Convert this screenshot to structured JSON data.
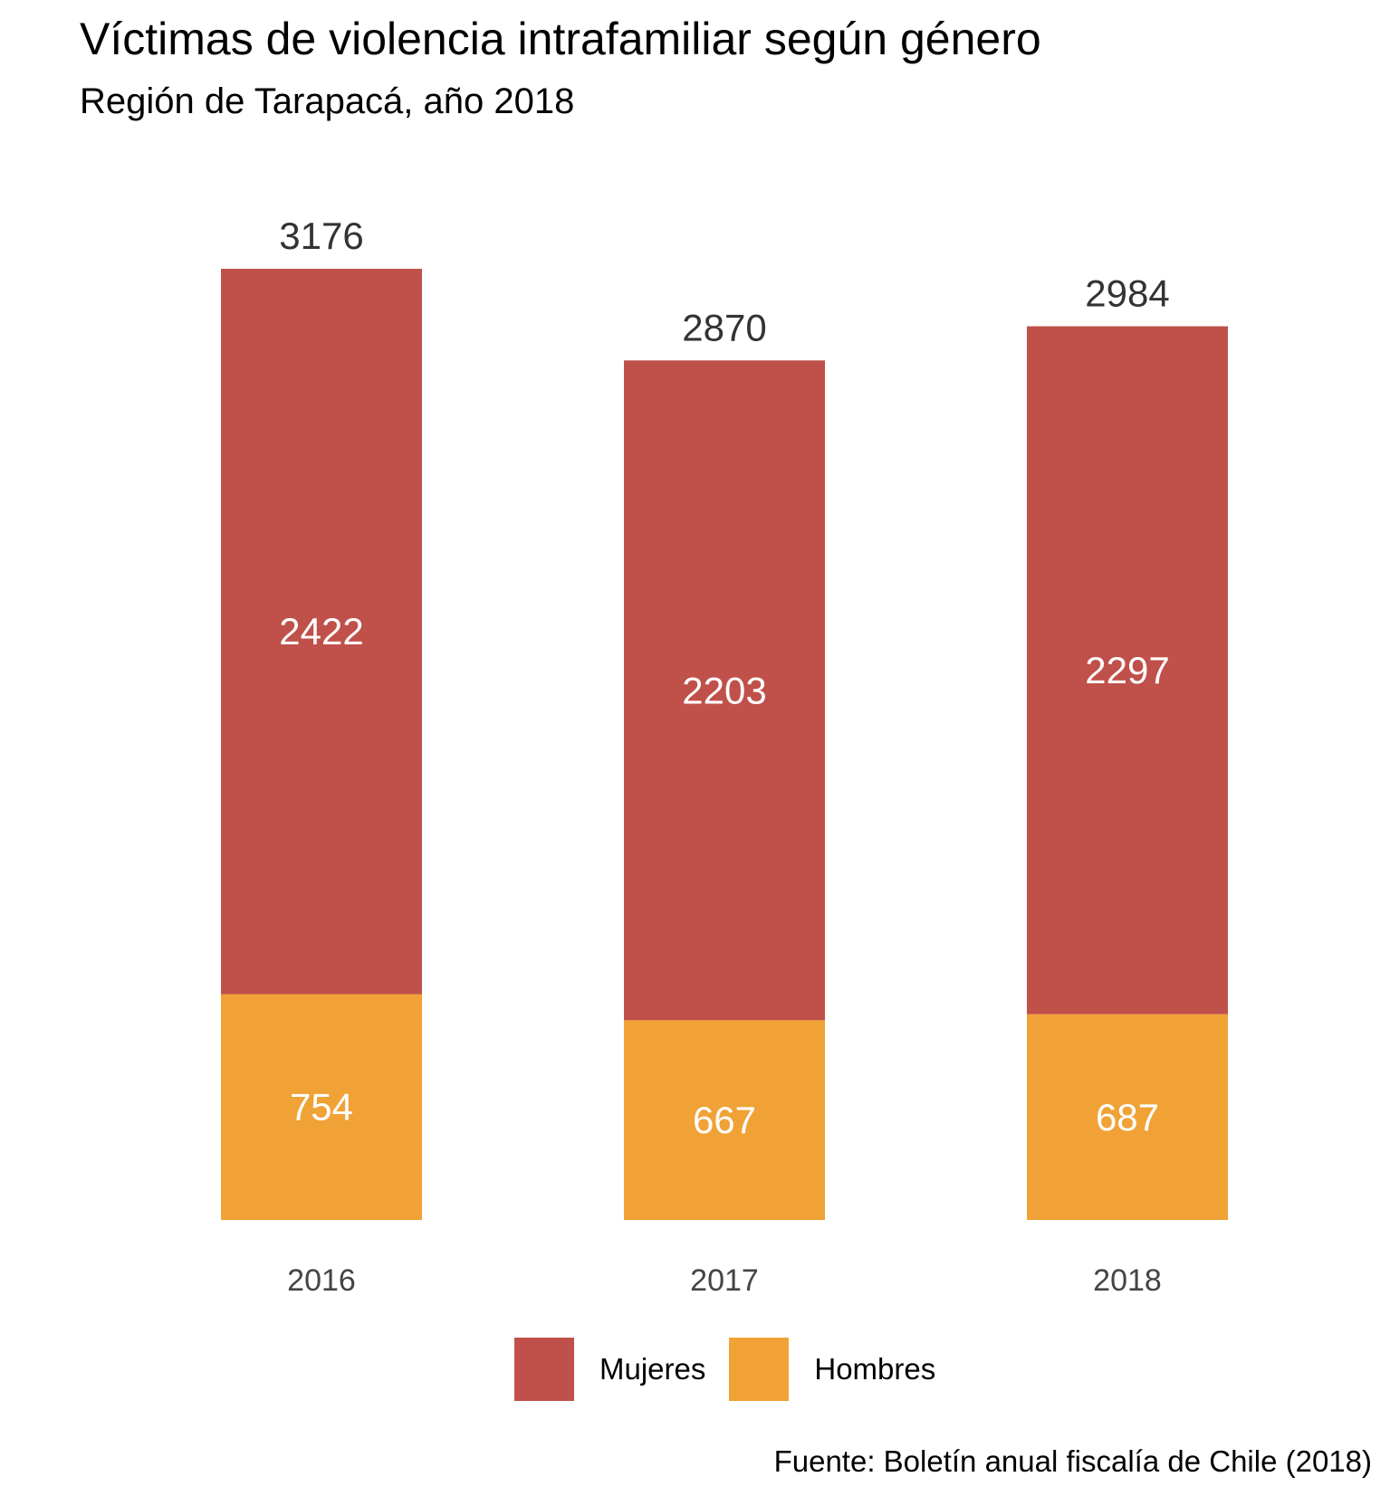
{
  "title": "Víctimas de violencia intrafamiliar según género",
  "subtitle": "Región de Tarapacá, año 2018",
  "caption": "Fuente: Boletín anual fiscalía de Chile (2018)",
  "colors": {
    "mujeres": "#C0504A",
    "hombres": "#F0A236",
    "bar_label": "#ffffff",
    "total_label": "#333333",
    "tick_label": "#444444"
  },
  "chart_data": {
    "type": "bar",
    "stacked": true,
    "categories": [
      "2016",
      "2017",
      "2018"
    ],
    "series": [
      {
        "name": "Hombres",
        "values": [
          754,
          667,
          687
        ]
      },
      {
        "name": "Mujeres",
        "values": [
          2422,
          2203,
          2297
        ]
      }
    ],
    "totals": [
      3176,
      2870,
      2984
    ],
    "title": "Víctimas de violencia intrafamiliar según género",
    "subtitle": "Región de Tarapacá, año 2018",
    "xlabel": "",
    "ylabel": "",
    "ylim": [
      0,
      3176
    ],
    "grid": false,
    "legend": "bottom"
  }
}
